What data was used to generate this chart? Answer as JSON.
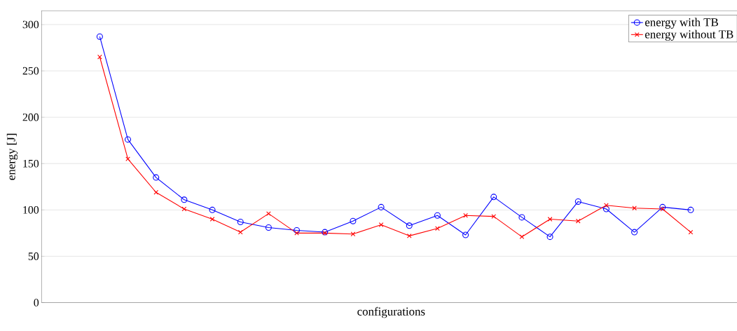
{
  "chart_data": {
    "type": "line",
    "xlabel": "configurations",
    "ylabel": "energy [J]",
    "categories": [
      null,
      null,
      null,
      null,
      null,
      null,
      null,
      null,
      null,
      null,
      null,
      null,
      null,
      null,
      null,
      null,
      null,
      null,
      null,
      null,
      null,
      null
    ],
    "series": [
      {
        "name": "energy with TB",
        "color": "#0000ff",
        "marker": "circle",
        "values": [
          287,
          176,
          135,
          111,
          100,
          87,
          81,
          78,
          76,
          88,
          103,
          83,
          94,
          73,
          114,
          92,
          71,
          109,
          101,
          76,
          103,
          100
        ]
      },
      {
        "name": "energy without TB",
        "color": "#ff0000",
        "marker": "cross",
        "values": [
          265,
          155,
          119,
          101,
          90,
          76,
          96,
          75,
          75,
          74,
          84,
          72,
          80,
          94,
          93,
          71,
          90,
          88,
          105,
          102,
          101,
          76
        ]
      }
    ],
    "ylim": [
      0,
      315
    ],
    "yticks": [
      0,
      50,
      100,
      150,
      200,
      250,
      300
    ],
    "grid": "y",
    "legend": "top right",
    "line_style": "solid"
  }
}
